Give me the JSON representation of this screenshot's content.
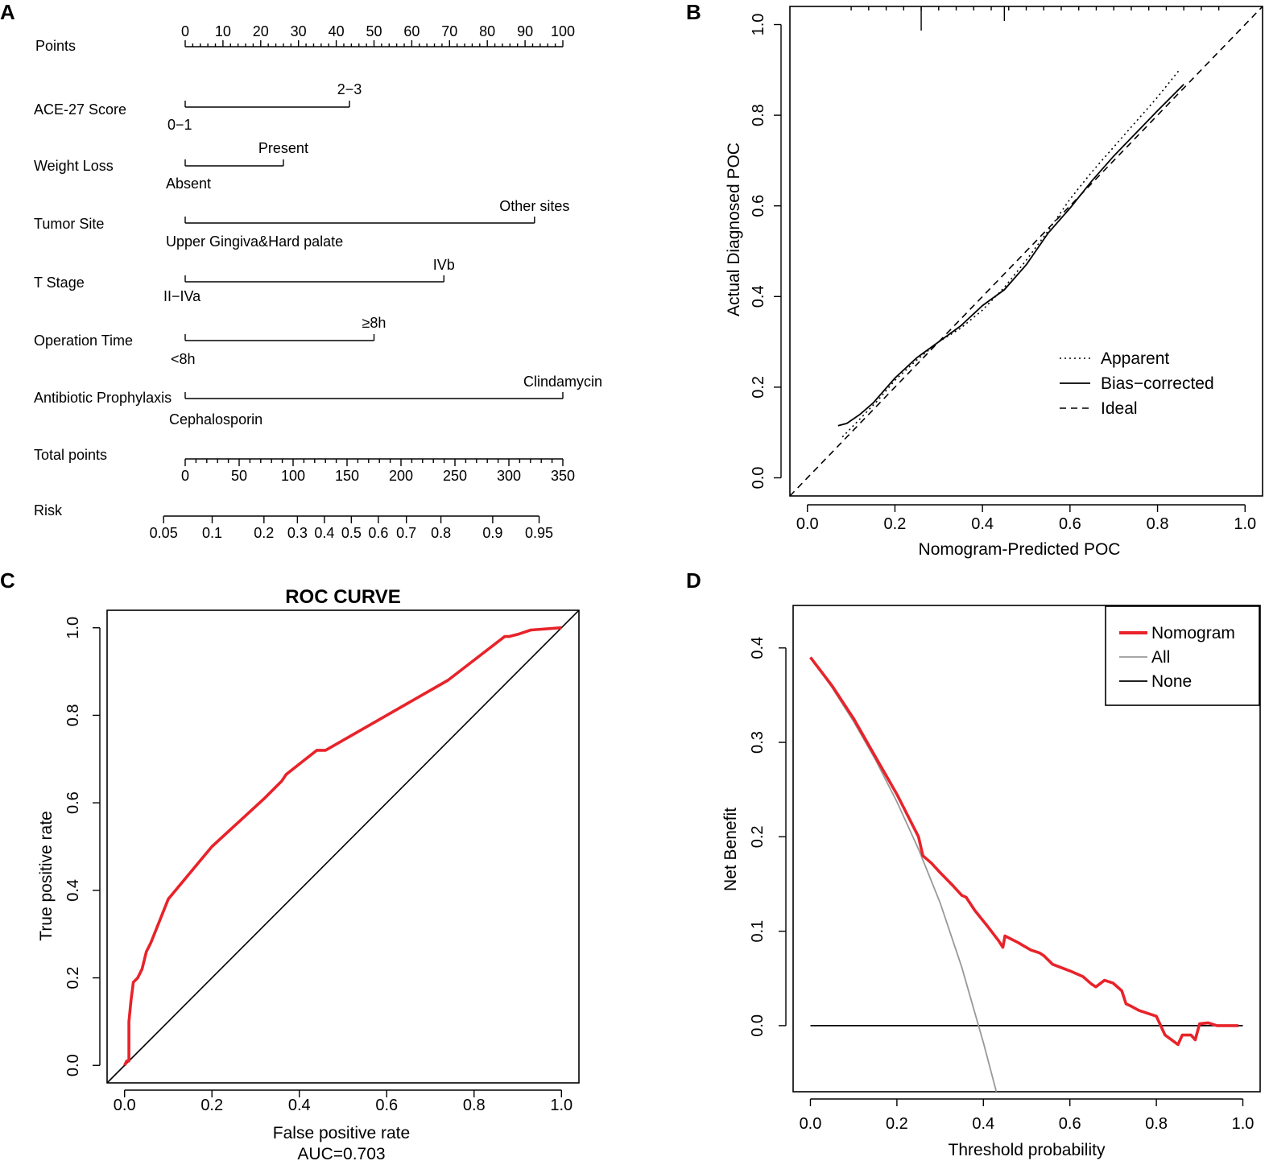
{
  "panels": {
    "a": {
      "label": "A",
      "chart_data": {
        "type": "nomogram",
        "points_scale": {
          "name": "Points",
          "ticks": [
            "0",
            "10",
            "20",
            "30",
            "40",
            "50",
            "60",
            "70",
            "80",
            "90",
            "100"
          ]
        },
        "variables": [
          {
            "name": "ACE-27 Score",
            "low_label": "0−1",
            "high_label": "2−3",
            "high_points": 43.5
          },
          {
            "name": "Weight Loss",
            "low_label": "Absent",
            "high_label": "Present",
            "high_points": 26
          },
          {
            "name": "Tumor Site",
            "low_label": "Upper Gingiva&Hard palate",
            "high_label": "Other sites",
            "high_points": 92.5
          },
          {
            "name": "T Stage",
            "low_label": "II−IVa",
            "high_label": "IVb",
            "high_points": 68.5
          },
          {
            "name": "Operation Time",
            "low_label": "<8h",
            "high_label": "≥8h",
            "high_points": 50
          },
          {
            "name": "Antibiotic Prophylaxis",
            "low_label": "Cephalosporin",
            "high_label": "Clindamycin",
            "high_points": 100
          }
        ],
        "total_points_scale": {
          "name": "Total points",
          "range": [
            0,
            350
          ],
          "ticks": [
            "0",
            "50",
            "100",
            "150",
            "200",
            "250",
            "300",
            "350"
          ]
        },
        "risk_scale": {
          "name": "Risk",
          "ticks": [
            {
              "label": "0.05",
              "total_points": -20
            },
            {
              "label": "0.1",
              "total_points": 25
            },
            {
              "label": "0.2",
              "total_points": 73
            },
            {
              "label": "0.3",
              "total_points": 104
            },
            {
              "label": "0.4",
              "total_points": 129
            },
            {
              "label": "0.5",
              "total_points": 154
            },
            {
              "label": "0.6",
              "total_points": 179
            },
            {
              "label": "0.7",
              "total_points": 205
            },
            {
              "label": "0.8",
              "total_points": 237
            },
            {
              "label": "0.9",
              "total_points": 285
            },
            {
              "label": "0.95",
              "total_points": 328
            }
          ]
        }
      }
    },
    "b": {
      "label": "B",
      "chart_data": {
        "type": "line",
        "xlabel": "Nomogram-Predicted POC",
        "ylabel": "Actual Diagnosed POC",
        "xlim": [
          -0.04,
          1.04
        ],
        "ylim": [
          -0.04,
          1.04
        ],
        "x_ticks": [
          "0.0",
          "0.2",
          "0.4",
          "0.6",
          "0.8",
          "1.0"
        ],
        "y_ticks": [
          "0.0",
          "0.2",
          "0.4",
          "0.6",
          "0.8",
          "1.0"
        ],
        "rug_x": [
          0.26,
          0.45
        ],
        "legend_position": "bottom-right",
        "series": [
          {
            "name": "Apparent",
            "style": "dotted",
            "x": [
              0.08,
              0.12,
              0.16,
              0.2,
              0.25,
              0.3,
              0.35,
              0.4,
              0.45,
              0.5,
              0.55,
              0.6,
              0.65,
              0.7,
              0.75,
              0.8,
              0.85
            ],
            "y": [
              0.09,
              0.13,
              0.17,
              0.215,
              0.26,
              0.3,
              0.33,
              0.37,
              0.42,
              0.48,
              0.545,
              0.615,
              0.675,
              0.73,
              0.785,
              0.84,
              0.9
            ]
          },
          {
            "name": "Bias−corrected",
            "style": "solid",
            "x": [
              0.07,
              0.09,
              0.12,
              0.15,
              0.2,
              0.25,
              0.3,
              0.35,
              0.4,
              0.45,
              0.5,
              0.55,
              0.6,
              0.65,
              0.7,
              0.75,
              0.8,
              0.86
            ],
            "y": [
              0.115,
              0.12,
              0.14,
              0.165,
              0.22,
              0.265,
              0.3,
              0.335,
              0.38,
              0.415,
              0.47,
              0.54,
              0.595,
              0.655,
              0.71,
              0.76,
              0.81,
              0.868
            ]
          },
          {
            "name": "Ideal",
            "style": "dashed",
            "x": [
              -0.04,
              1.04
            ],
            "y": [
              -0.04,
              1.04
            ]
          }
        ]
      }
    },
    "c": {
      "label": "C",
      "chart_data": {
        "type": "line",
        "title": "ROC CURVE",
        "xlabel": "False positive rate",
        "ylabel": "True positive rate",
        "annotation": "AUC=0.703",
        "xlim": [
          -0.04,
          1.04
        ],
        "ylim": [
          -0.04,
          1.04
        ],
        "x_ticks": [
          "0.0",
          "0.2",
          "0.4",
          "0.6",
          "0.8",
          "1.0"
        ],
        "y_ticks": [
          "0.0",
          "0.2",
          "0.4",
          "0.6",
          "0.8",
          "1.0"
        ],
        "series": [
          {
            "name": "ROC",
            "color": "#e8232a",
            "x": [
              0.0,
              0.005,
              0.01,
              0.01,
              0.015,
              0.02,
              0.03,
              0.04,
              0.05,
              0.06,
              0.1,
              0.2,
              0.32,
              0.36,
              0.37,
              0.44,
              0.46,
              0.6,
              0.74,
              0.87,
              0.88,
              0.9,
              0.93,
              1.0
            ],
            "y": [
              0.0,
              0.01,
              0.01,
              0.1,
              0.15,
              0.19,
              0.2,
              0.22,
              0.26,
              0.28,
              0.38,
              0.5,
              0.61,
              0.65,
              0.665,
              0.72,
              0.72,
              0.8,
              0.88,
              0.98,
              0.98,
              0.985,
              0.995,
              1.0
            ]
          },
          {
            "name": "Reference",
            "color": "#000000",
            "x": [
              -0.04,
              1.04
            ],
            "y": [
              -0.04,
              1.04
            ]
          }
        ]
      }
    },
    "d": {
      "label": "D",
      "chart_data": {
        "type": "line",
        "xlabel": "Threshold probability",
        "ylabel": "Net Benefit",
        "xlim": [
          -0.04,
          1.04
        ],
        "ylim": [
          -0.07,
          0.445
        ],
        "x_ticks": [
          "0.0",
          "0.2",
          "0.4",
          "0.6",
          "0.8",
          "1.0"
        ],
        "y_ticks": [
          "0.0",
          "0.1",
          "0.2",
          "0.3",
          "0.4"
        ],
        "legend_position": "top-right",
        "series": [
          {
            "name": "Nomogram",
            "color": "#e8232a",
            "x": [
              0.0,
              0.05,
              0.1,
              0.15,
              0.2,
              0.25,
              0.26,
              0.28,
              0.3,
              0.33,
              0.35,
              0.36,
              0.38,
              0.41,
              0.435,
              0.445,
              0.45,
              0.48,
              0.51,
              0.53,
              0.54,
              0.56,
              0.6,
              0.63,
              0.65,
              0.66,
              0.68,
              0.7,
              0.72,
              0.73,
              0.74,
              0.76,
              0.8,
              0.81,
              0.82,
              0.85,
              0.86,
              0.88,
              0.89,
              0.9,
              0.92,
              0.94,
              0.99
            ],
            "y": [
              0.39,
              0.36,
              0.325,
              0.285,
              0.245,
              0.2,
              0.18,
              0.172,
              0.162,
              0.148,
              0.138,
              0.136,
              0.122,
              0.105,
              0.09,
              0.083,
              0.095,
              0.088,
              0.08,
              0.077,
              0.074,
              0.065,
              0.058,
              0.052,
              0.044,
              0.041,
              0.048,
              0.045,
              0.037,
              0.023,
              0.021,
              0.016,
              0.01,
              0.0,
              -0.01,
              -0.02,
              -0.01,
              -0.01,
              -0.015,
              0.002,
              0.003,
              0.0,
              0.0
            ]
          },
          {
            "name": "All",
            "color": "#999999",
            "x": [
              0.0,
              0.05,
              0.1,
              0.15,
              0.2,
              0.25,
              0.3,
              0.35,
              0.4,
              0.43
            ],
            "y": [
              0.39,
              0.358,
              0.322,
              0.282,
              0.237,
              0.187,
              0.13,
              0.062,
              -0.018,
              -0.07
            ]
          },
          {
            "name": "None",
            "color": "#000000",
            "x": [
              0.0,
              1.0
            ],
            "y": [
              0.0,
              0.0
            ]
          }
        ]
      }
    }
  }
}
